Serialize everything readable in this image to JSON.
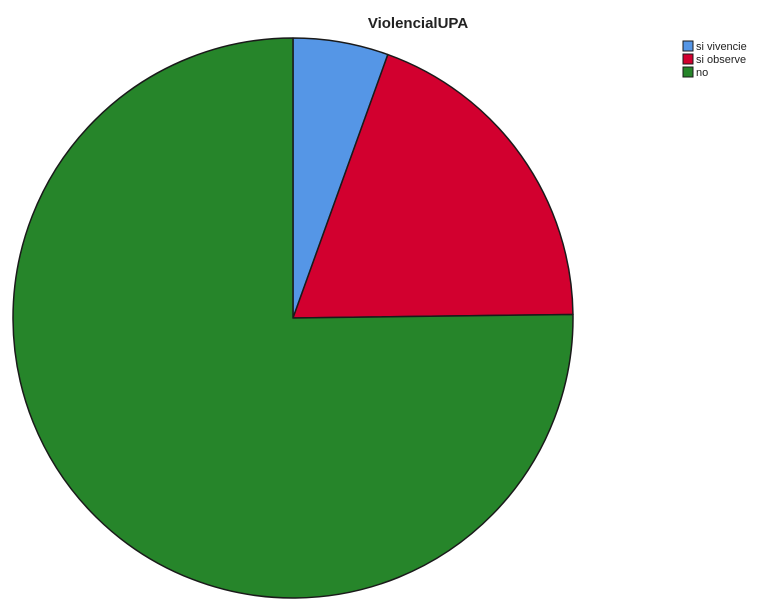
{
  "chart_data": {
    "type": "pie",
    "title": "ViolencialUPA",
    "legend_position": "top-right",
    "slices": [
      {
        "label": "si vivencie",
        "value": 5.5,
        "color": "#5596E6"
      },
      {
        "label": "si observe",
        "value": 19.3,
        "color": "#D2002F"
      },
      {
        "label": "no",
        "value": 75.2,
        "color": "#26852A"
      }
    ]
  }
}
